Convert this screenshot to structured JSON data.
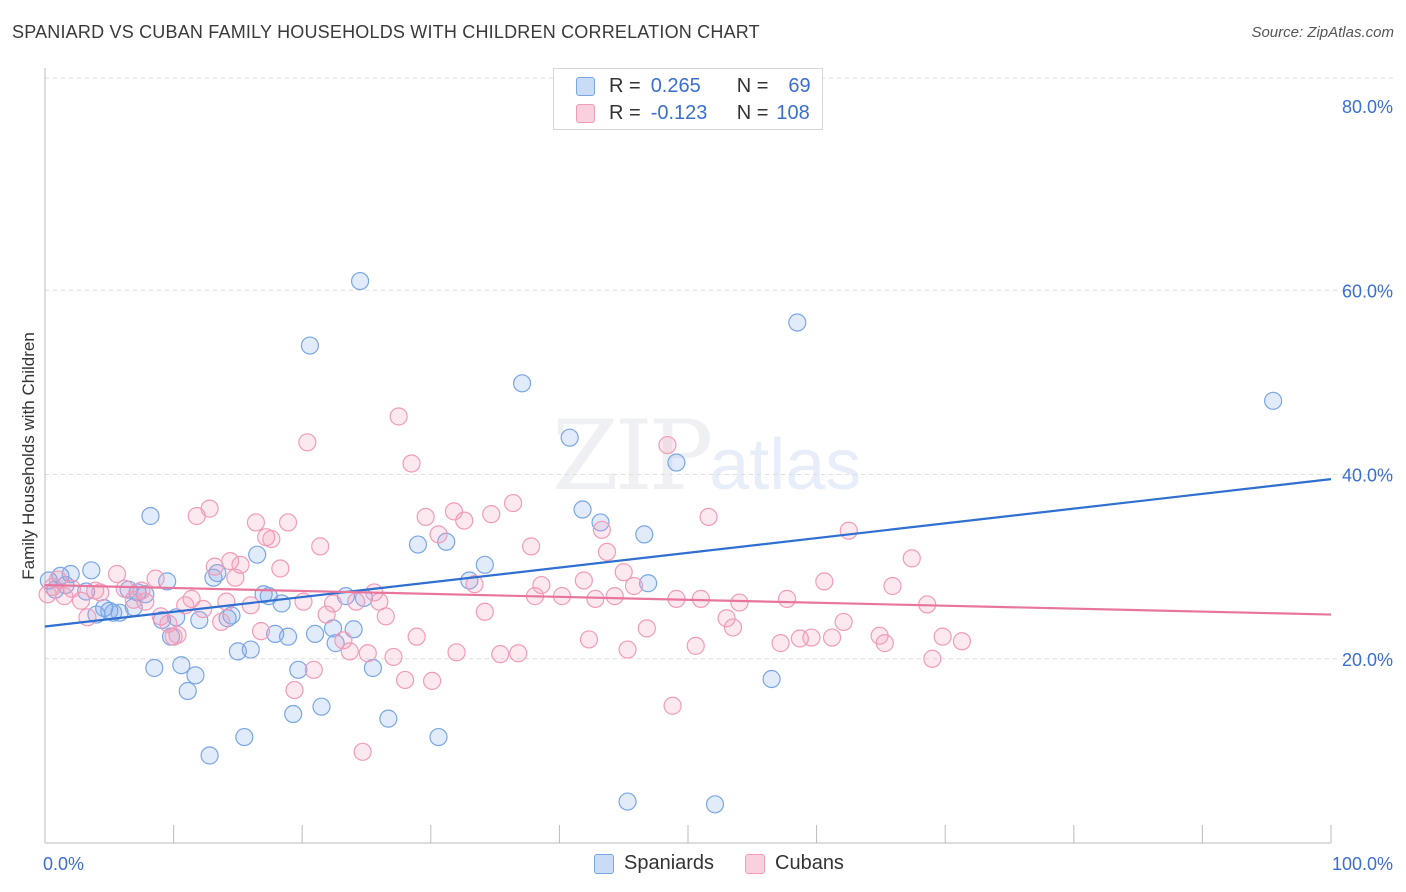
{
  "title": "SPANIARD VS CUBAN FAMILY HOUSEHOLDS WITH CHILDREN CORRELATION CHART",
  "source": "Source: ZipAtlas.com",
  "watermark": {
    "zip": "ZIP",
    "atlas": "atlas"
  },
  "legend": {
    "rows": [
      {
        "r_label": "R =",
        "r_value": "0.265",
        "n_label": "N =",
        "n_value": "69",
        "color": "#7aa6e6"
      },
      {
        "r_label": "R =",
        "r_value": "-0.123",
        "n_label": "N =",
        "n_value": "108",
        "color": "#f29bb8"
      }
    ],
    "bottom": [
      {
        "label": "Spaniards",
        "color": "#7aa6e6"
      },
      {
        "label": "Cubans",
        "color": "#f29bb8"
      }
    ]
  },
  "chart_data": {
    "type": "scatter",
    "title": "SPANIARD VS CUBAN FAMILY HOUSEHOLDS WITH CHILDREN CORRELATION CHART",
    "xlabel": "",
    "ylabel": "Family Households with Children",
    "xlim": [
      0,
      100
    ],
    "ylim": [
      0,
      85
    ],
    "x_tick_labels": [
      "0.0%",
      "100.0%"
    ],
    "y_ticks": [
      20,
      40,
      60,
      80
    ],
    "y_tick_labels": [
      "20.0%",
      "40.0%",
      "60.0%",
      "80.0%"
    ],
    "grid": true,
    "legend_position": "top-center",
    "series": [
      {
        "name": "Spaniards",
        "color": "#7aa6e6",
        "line_color": "#2f6fd0",
        "trend": [
          [
            0,
            23.5
          ],
          [
            100,
            39.5
          ]
        ],
        "points": [
          [
            0.3,
            28.5
          ],
          [
            0.8,
            27.5
          ],
          [
            1.2,
            29.0
          ],
          [
            1.6,
            28.0
          ],
          [
            2.0,
            29.2
          ],
          [
            3.6,
            29.6
          ],
          [
            3.2,
            27.3
          ],
          [
            4.0,
            24.8
          ],
          [
            4.6,
            25.5
          ],
          [
            5.0,
            25.2
          ],
          [
            5.3,
            25.0
          ],
          [
            5.8,
            25.0
          ],
          [
            6.9,
            25.6
          ],
          [
            7.2,
            27.2
          ],
          [
            6.5,
            27.5
          ],
          [
            7.8,
            27.0
          ],
          [
            8.2,
            35.5
          ],
          [
            8.5,
            19.0
          ],
          [
            9.1,
            24.2
          ],
          [
            9.5,
            28.4
          ],
          [
            9.8,
            22.4
          ],
          [
            10.2,
            24.5
          ],
          [
            10.6,
            19.3
          ],
          [
            11.1,
            16.5
          ],
          [
            11.7,
            18.2
          ],
          [
            12.0,
            24.2
          ],
          [
            12.8,
            9.5
          ],
          [
            13.1,
            28.8
          ],
          [
            13.4,
            29.3
          ],
          [
            14.2,
            24.4
          ],
          [
            14.5,
            24.7
          ],
          [
            15.0,
            20.8
          ],
          [
            15.5,
            11.5
          ],
          [
            16.0,
            21.0
          ],
          [
            16.5,
            31.3
          ],
          [
            17.0,
            27.0
          ],
          [
            17.4,
            26.8
          ],
          [
            17.9,
            22.7
          ],
          [
            18.4,
            26.0
          ],
          [
            18.9,
            22.4
          ],
          [
            19.3,
            14.0
          ],
          [
            19.7,
            18.8
          ],
          [
            20.6,
            54.0
          ],
          [
            21.0,
            22.7
          ],
          [
            21.5,
            14.8
          ],
          [
            22.4,
            23.3
          ],
          [
            22.6,
            21.7
          ],
          [
            23.4,
            26.8
          ],
          [
            24.0,
            23.2
          ],
          [
            24.5,
            61.0
          ],
          [
            24.8,
            26.6
          ],
          [
            25.5,
            19.0
          ],
          [
            26.7,
            13.5
          ],
          [
            29.0,
            32.4
          ],
          [
            30.6,
            11.5
          ],
          [
            31.2,
            32.7
          ],
          [
            33.0,
            28.5
          ],
          [
            34.2,
            30.2
          ],
          [
            37.1,
            49.9
          ],
          [
            40.8,
            44.0
          ],
          [
            41.8,
            36.2
          ],
          [
            43.2,
            34.8
          ],
          [
            45.3,
            4.5
          ],
          [
            46.6,
            33.5
          ],
          [
            46.9,
            28.2
          ],
          [
            49.1,
            41.3
          ],
          [
            52.1,
            4.2
          ],
          [
            56.5,
            17.8
          ],
          [
            58.5,
            56.5
          ],
          [
            95.5,
            48.0
          ]
        ]
      },
      {
        "name": "Cubans",
        "color": "#f29bb8",
        "line_color": "#e8769c",
        "trend": [
          [
            0,
            28.0
          ],
          [
            100,
            24.8
          ]
        ],
        "points": [
          [
            0.2,
            27.0
          ],
          [
            0.6,
            27.8
          ],
          [
            1.0,
            28.6
          ],
          [
            1.5,
            26.8
          ],
          [
            2.1,
            27.6
          ],
          [
            2.8,
            26.3
          ],
          [
            3.3,
            24.5
          ],
          [
            3.9,
            27.4
          ],
          [
            4.3,
            27.2
          ],
          [
            5.6,
            29.2
          ],
          [
            6.2,
            27.6
          ],
          [
            6.9,
            26.4
          ],
          [
            7.5,
            27.4
          ],
          [
            7.8,
            26.2
          ],
          [
            8.6,
            28.7
          ],
          [
            9.0,
            24.6
          ],
          [
            9.6,
            23.8
          ],
          [
            10.0,
            22.4
          ],
          [
            10.3,
            22.6
          ],
          [
            10.9,
            25.8
          ],
          [
            11.4,
            26.5
          ],
          [
            11.8,
            35.5
          ],
          [
            12.3,
            25.4
          ],
          [
            12.8,
            36.3
          ],
          [
            13.2,
            30.0
          ],
          [
            13.7,
            24.0
          ],
          [
            14.1,
            26.2
          ],
          [
            14.4,
            30.6
          ],
          [
            14.8,
            28.8
          ],
          [
            15.2,
            30.2
          ],
          [
            16.0,
            25.8
          ],
          [
            16.4,
            34.8
          ],
          [
            16.8,
            23.0
          ],
          [
            17.2,
            33.2
          ],
          [
            17.6,
            33.0
          ],
          [
            18.3,
            29.8
          ],
          [
            18.9,
            34.8
          ],
          [
            19.4,
            16.6
          ],
          [
            20.1,
            26.2
          ],
          [
            20.4,
            43.5
          ],
          [
            20.9,
            18.8
          ],
          [
            21.4,
            32.2
          ],
          [
            21.9,
            24.8
          ],
          [
            22.4,
            26.0
          ],
          [
            23.2,
            22.0
          ],
          [
            23.7,
            20.8
          ],
          [
            24.2,
            26.2
          ],
          [
            24.7,
            9.9
          ],
          [
            25.1,
            20.6
          ],
          [
            25.6,
            27.2
          ],
          [
            26.0,
            26.2
          ],
          [
            26.5,
            24.6
          ],
          [
            27.1,
            20.2
          ],
          [
            27.5,
            46.3
          ],
          [
            28.0,
            17.7
          ],
          [
            28.5,
            41.2
          ],
          [
            28.9,
            22.4
          ],
          [
            29.6,
            35.4
          ],
          [
            30.1,
            17.6
          ],
          [
            30.6,
            33.5
          ],
          [
            31.8,
            36.0
          ],
          [
            32.0,
            20.7
          ],
          [
            32.6,
            35.0
          ],
          [
            33.4,
            28.1
          ],
          [
            34.2,
            25.1
          ],
          [
            34.7,
            35.7
          ],
          [
            35.4,
            20.5
          ],
          [
            36.4,
            36.9
          ],
          [
            36.8,
            20.6
          ],
          [
            37.8,
            32.2
          ],
          [
            38.1,
            26.8
          ],
          [
            38.6,
            28.0
          ],
          [
            40.2,
            26.8
          ],
          [
            41.9,
            28.5
          ],
          [
            42.3,
            22.1
          ],
          [
            42.8,
            26.5
          ],
          [
            43.3,
            34.0
          ],
          [
            43.7,
            31.6
          ],
          [
            44.3,
            26.8
          ],
          [
            45.0,
            29.4
          ],
          [
            45.3,
            21.0
          ],
          [
            45.8,
            27.9
          ],
          [
            46.8,
            23.3
          ],
          [
            48.4,
            43.2
          ],
          [
            48.8,
            14.9
          ],
          [
            49.1,
            26.5
          ],
          [
            50.6,
            21.4
          ],
          [
            51.0,
            26.5
          ],
          [
            51.6,
            35.4
          ],
          [
            53.0,
            24.4
          ],
          [
            53.5,
            23.4
          ],
          [
            54.0,
            26.1
          ],
          [
            57.2,
            21.7
          ],
          [
            57.7,
            26.5
          ],
          [
            58.7,
            22.2
          ],
          [
            59.6,
            22.3
          ],
          [
            60.6,
            28.4
          ],
          [
            61.2,
            22.3
          ],
          [
            62.1,
            24.0
          ],
          [
            62.5,
            33.9
          ],
          [
            64.9,
            22.5
          ],
          [
            65.3,
            21.7
          ],
          [
            65.9,
            27.9
          ],
          [
            67.4,
            30.9
          ],
          [
            68.6,
            25.9
          ],
          [
            69.0,
            20.0
          ],
          [
            69.8,
            22.4
          ],
          [
            71.3,
            21.9
          ]
        ]
      }
    ]
  }
}
